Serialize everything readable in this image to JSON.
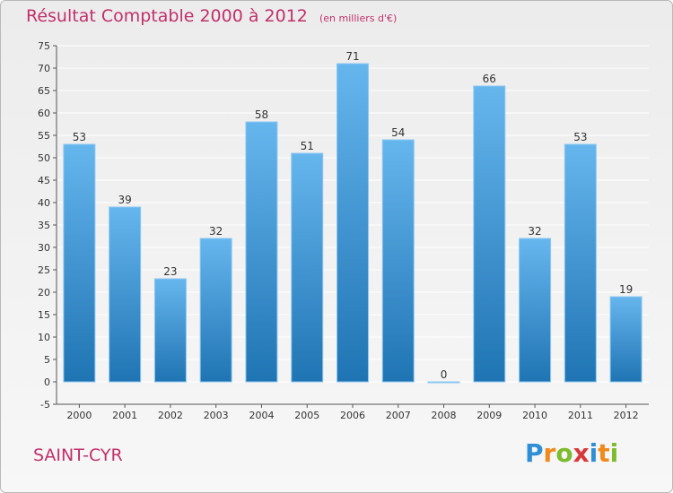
{
  "header": {
    "title": "Résultat Comptable 2000 à 2012",
    "unit": "(en milliers d'€)"
  },
  "footer": {
    "commune": "SAINT-CYR",
    "logo": "Proxiti"
  },
  "colors": {
    "title": "#c0306a",
    "bar_top": "#66b6ee",
    "bar_bottom": "#1f74b3",
    "grid": "#ffffff",
    "logo_letters": [
      "#2f8fd6",
      "#f08a1c",
      "#7dbb2f",
      "#d63a3a",
      "#2f8fd6",
      "#f08a1c",
      "#7dbb2f"
    ]
  },
  "chart_data": {
    "type": "bar",
    "title": "Résultat Comptable 2000 à 2012",
    "subtitle": "(en milliers d'€)",
    "xlabel": "",
    "ylabel": "",
    "categories": [
      "2000",
      "2001",
      "2002",
      "2003",
      "2004",
      "2005",
      "2006",
      "2007",
      "2008",
      "2009",
      "2010",
      "2011",
      "2012"
    ],
    "values": [
      53,
      39,
      23,
      32,
      58,
      51,
      71,
      54,
      0,
      66,
      32,
      53,
      19
    ],
    "ylim": [
      -5,
      75
    ],
    "yticks": [
      -5,
      0,
      5,
      10,
      15,
      20,
      25,
      30,
      35,
      40,
      45,
      50,
      55,
      60,
      65,
      70,
      75
    ],
    "grid": true
  }
}
